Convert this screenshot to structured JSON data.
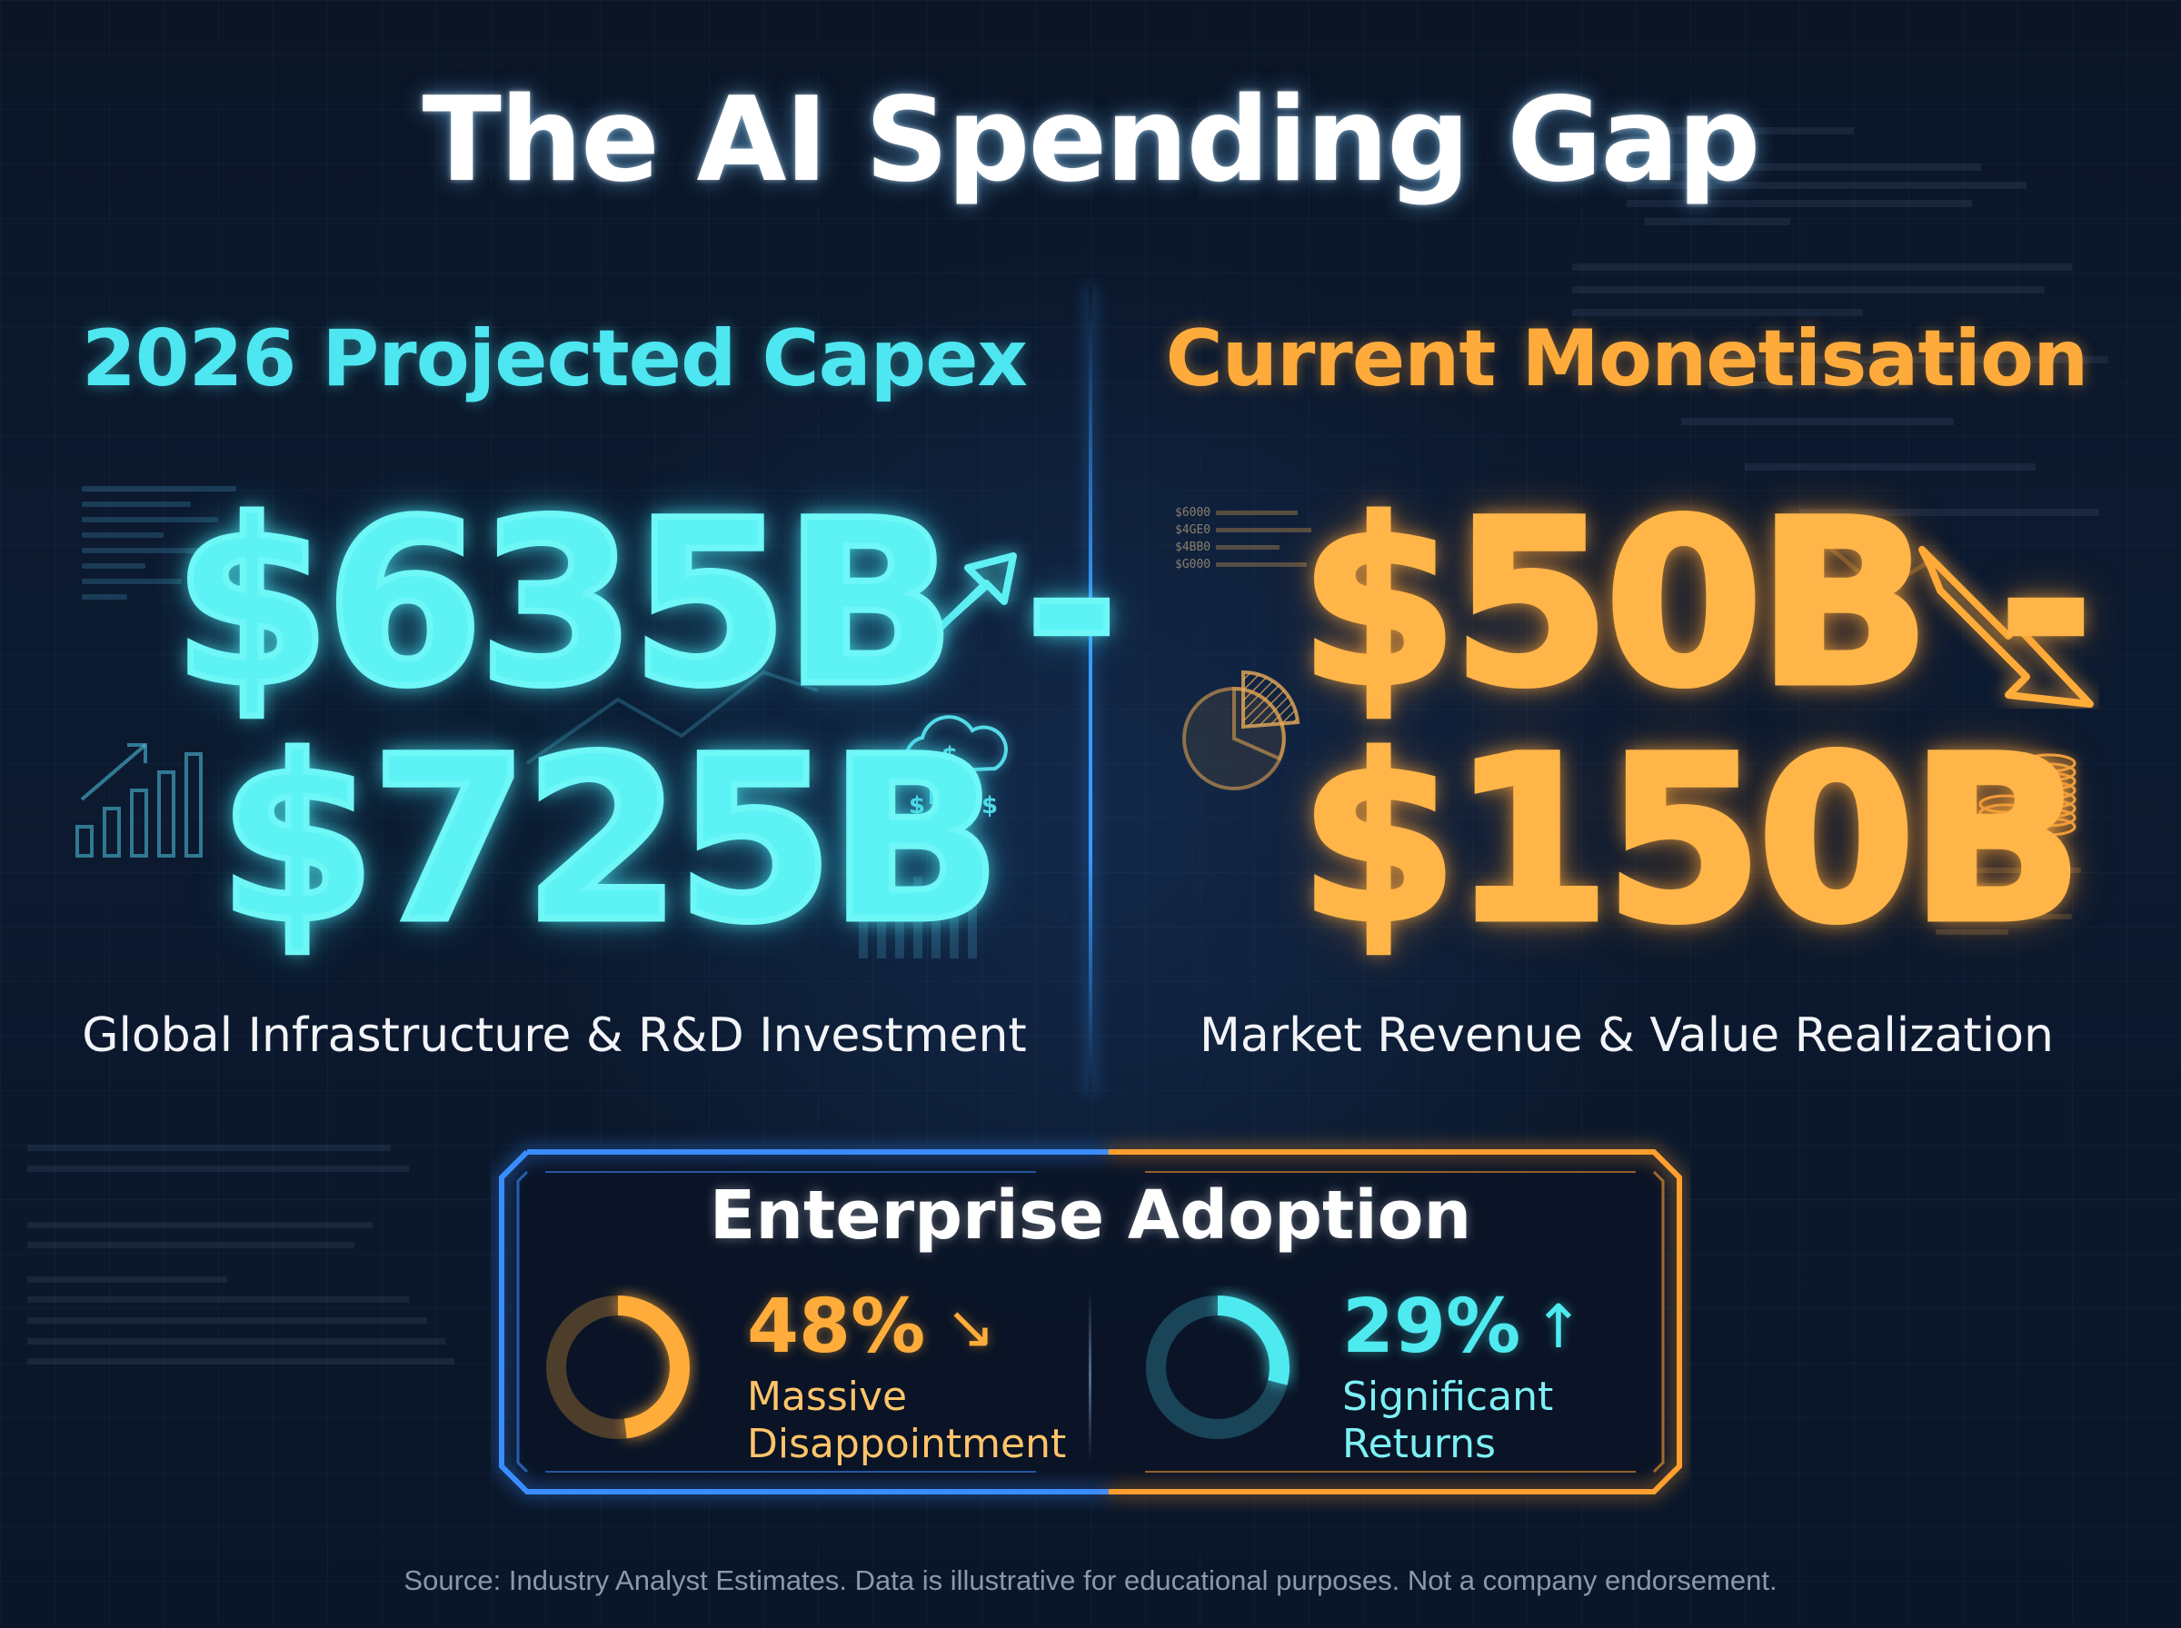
{
  "title": "The AI Spending Gap",
  "left_column": {
    "heading": "2026 Projected Capex",
    "value_line1": "$635B -",
    "value_line2": "$725B",
    "subtitle": "Global Infrastructure & R&D Investment",
    "accent_color": "#4ee6f0",
    "icons": [
      "trend-up-arrow-icon",
      "bar-chart-icon",
      "cloud-dollar-icon"
    ]
  },
  "right_column": {
    "heading": "Current Monetisation",
    "value_line1": "$50B -",
    "value_line2": "$150B",
    "subtitle": "Market Revenue & Value Realization",
    "accent_color": "#ffab3c",
    "icons": [
      "trend-down-arrow-icon",
      "pie-chart-icon",
      "coin-stack-icon"
    ],
    "decor_tick_labels": [
      "$6000",
      "$4GE0",
      "$4BB0",
      "$G000"
    ]
  },
  "adoption": {
    "title": "Enterprise Adoption",
    "items": [
      {
        "percent": "48%",
        "value": 48,
        "trend_arrow": "↘",
        "trend": "down",
        "label_line1": "Massive",
        "label_line2": "Disappointment",
        "color": "#ffac3a"
      },
      {
        "percent": "29%",
        "value": 29,
        "trend_arrow": "↑",
        "trend": "up",
        "label_line1": "Significant",
        "label_line2": "Returns",
        "color": "#4eeaf0"
      }
    ]
  },
  "source": "Source: Industry Analyst Estimates. Data is illustrative for educational purposes. Not a company endorsement.",
  "colors": {
    "background": "#0b1526",
    "divider": "#3a9bff",
    "panel_left_border": "#3a8cff",
    "panel_right_border": "#ff9f30"
  }
}
